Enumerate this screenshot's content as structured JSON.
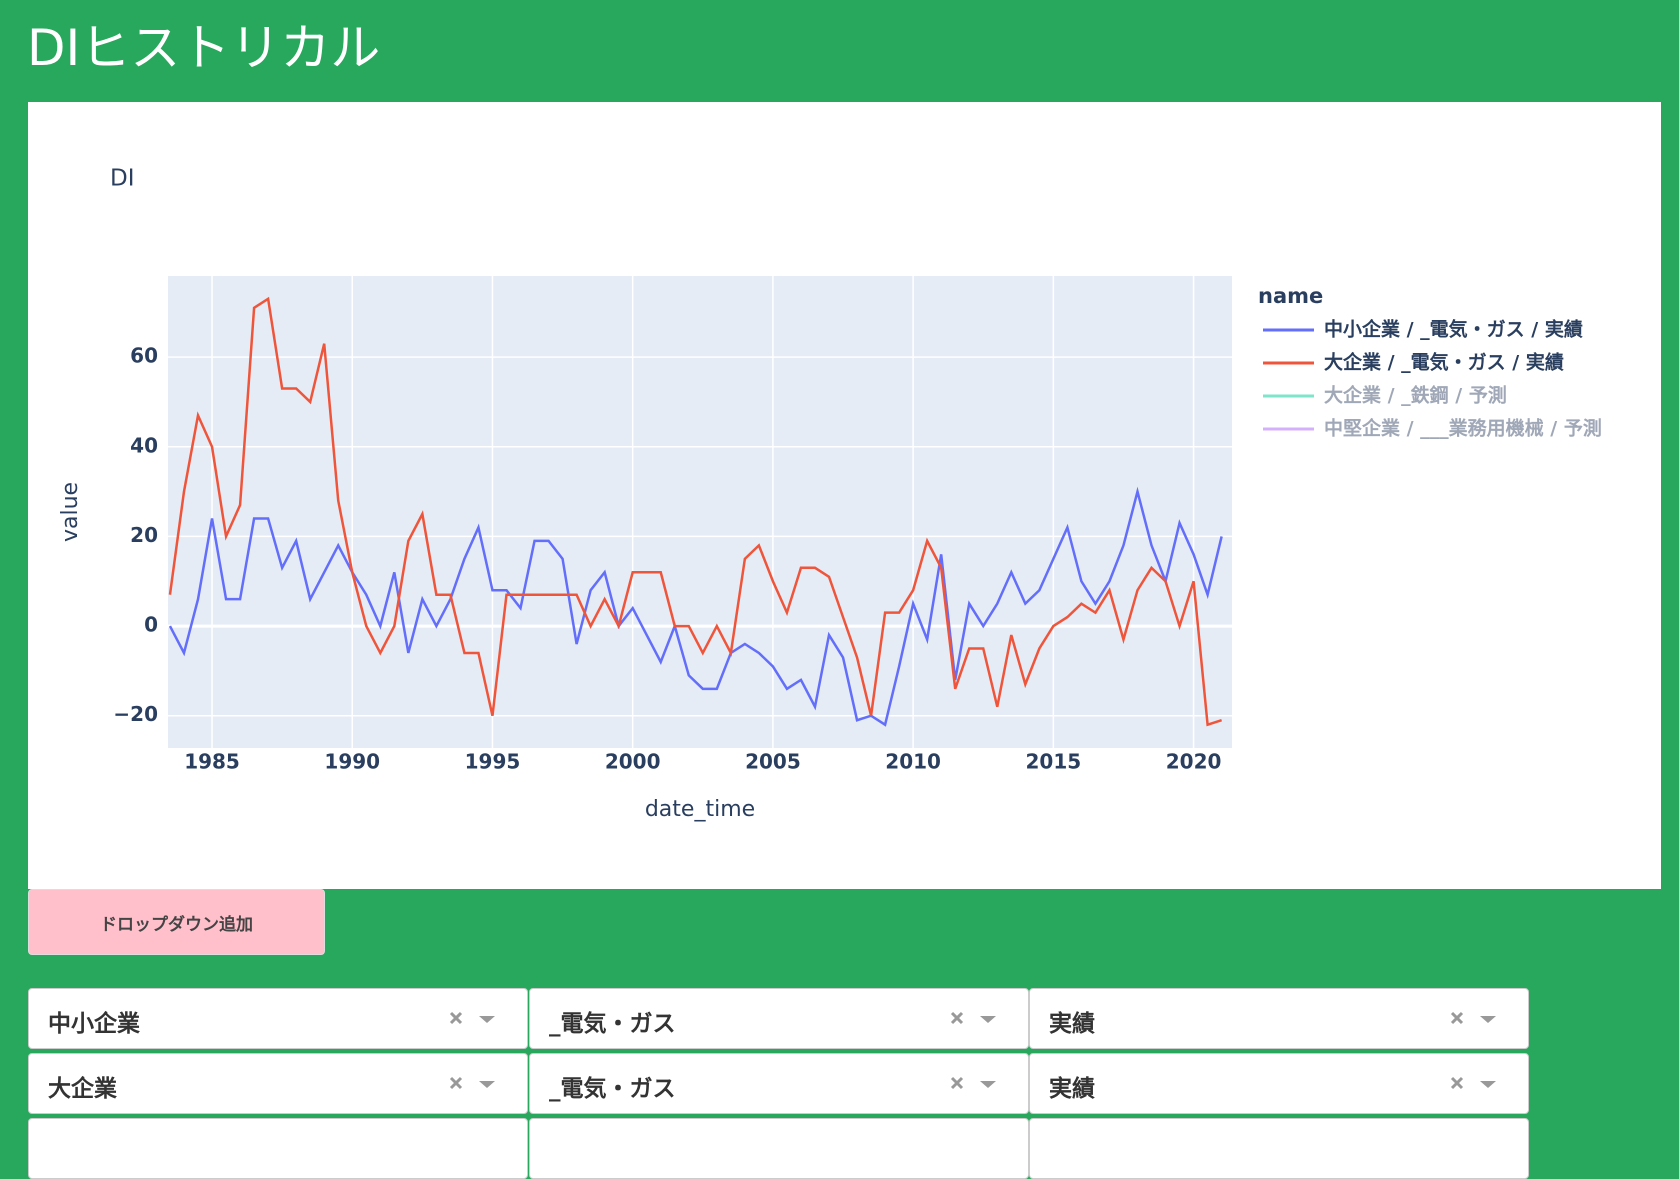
{
  "header": {
    "title": "DIヒストリカル"
  },
  "chart_data": {
    "type": "line",
    "title": "DI",
    "xlabel": "date_time",
    "ylabel": "value",
    "legend_title": "name",
    "x": [
      1983.5,
      1984.0,
      1984.5,
      1985.0,
      1985.5,
      1986.0,
      1986.5,
      1987.0,
      1987.5,
      1988.0,
      1988.5,
      1989.0,
      1989.5,
      1990.0,
      1990.5,
      1991.0,
      1991.5,
      1992.0,
      1992.5,
      1993.0,
      1993.5,
      1994.0,
      1994.5,
      1995.0,
      1995.5,
      1996.0,
      1996.5,
      1997.0,
      1997.5,
      1998.0,
      1998.5,
      1999.0,
      1999.5,
      2000.0,
      2000.5,
      2001.0,
      2001.5,
      2002.0,
      2002.5,
      2003.0,
      2003.5,
      2004.0,
      2004.5,
      2005.0,
      2005.5,
      2006.0,
      2006.5,
      2007.0,
      2007.5,
      2008.0,
      2008.5,
      2009.0,
      2009.5,
      2010.0,
      2010.5,
      2011.0,
      2011.5,
      2012.0,
      2012.5,
      2013.0,
      2013.5,
      2014.0,
      2014.5,
      2015.0,
      2015.5,
      2016.0,
      2016.5,
      2017.0,
      2017.5,
      2018.0,
      2018.5,
      2019.0,
      2019.5,
      2020.0,
      2020.5,
      2021.0
    ],
    "series": [
      {
        "name": "中小企業 / _電気・ガス / 実績",
        "color": "#636efa",
        "visible": true,
        "values": [
          0,
          -6,
          6,
          24,
          6,
          6,
          24,
          24,
          13,
          19,
          6,
          12,
          18,
          12,
          7,
          0,
          12,
          -6,
          6,
          0,
          6,
          15,
          22,
          8,
          8,
          4,
          19,
          19,
          15,
          -4,
          8,
          12,
          0,
          4,
          -2,
          -8,
          0,
          -11,
          -14,
          -14,
          -6,
          -4,
          -6,
          -9,
          -14,
          -12,
          -18,
          -2,
          -7,
          -21,
          -20,
          -22,
          -9,
          5,
          -3,
          16,
          -12,
          5,
          0,
          5,
          12,
          5,
          8,
          15,
          22,
          10,
          5,
          10,
          18,
          30,
          18,
          10,
          23,
          16,
          7,
          20
        ]
      },
      {
        "name": "大企業 / _電気・ガス / 実績",
        "color": "#ef553b",
        "visible": true,
        "values": [
          7,
          30,
          47,
          40,
          20,
          27,
          71,
          73,
          53,
          53,
          50,
          63,
          28,
          12,
          0,
          -6,
          0,
          19,
          25,
          7,
          7,
          -6,
          -6,
          -20,
          7,
          7,
          7,
          7,
          7,
          7,
          0,
          6,
          0,
          12,
          12,
          12,
          0,
          0,
          -6,
          0,
          -6,
          15,
          18,
          10,
          3,
          13,
          13,
          11,
          2,
          -7,
          -20,
          3,
          3,
          8,
          19,
          13,
          -14,
          -5,
          -5,
          -18,
          -2,
          -13,
          -5,
          0,
          2,
          5,
          3,
          8,
          -3,
          8,
          13,
          10,
          0,
          10,
          -22,
          -21
        ]
      },
      {
        "name": "大企業 / _鉄鋼 / 予測",
        "color": "#00cc96",
        "visible": "legendonly"
      },
      {
        "name": "中堅企業 / ___業務用機械 / 予測",
        "color": "#ab63fa",
        "visible": "legendonly"
      }
    ],
    "xlim": [
      1983.43,
      2021.37
    ],
    "xticks": [
      1985,
      1990,
      1995,
      2000,
      2005,
      2010,
      2015,
      2020
    ],
    "ylim": [
      -27.2,
      78.1
    ],
    "yticks": [
      {
        "value": -20,
        "label": "−20"
      },
      0,
      20,
      40,
      60
    ],
    "grid": true
  },
  "button": "ドロップダウン追加",
  "dropdowns": [
    [
      "中小企業",
      "_電気・ガス",
      "実績"
    ],
    [
      "大企業",
      "_電気・ガス",
      "実績"
    ]
  ]
}
